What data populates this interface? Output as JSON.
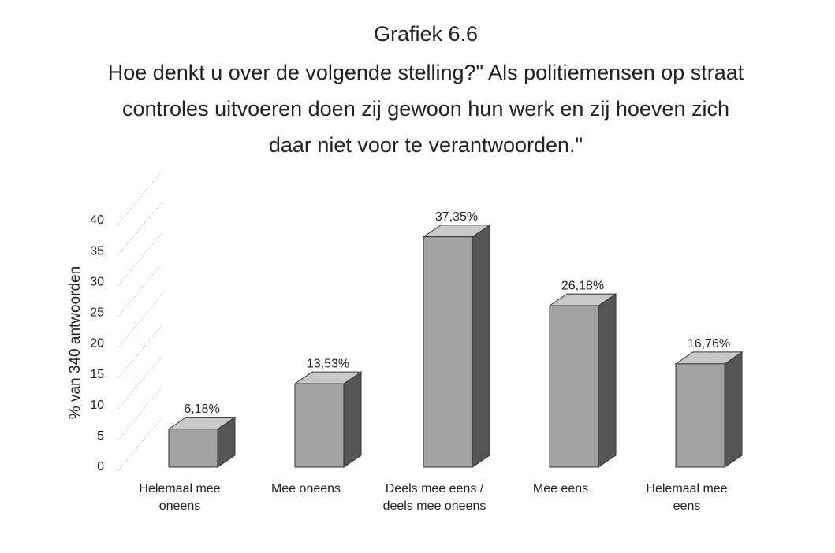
{
  "chart_data": {
    "type": "bar3d",
    "title": "Grafiek 6.6",
    "subtitle": "Hoe denkt u over de volgende stelling?\" Als politiemensen op straat controles uitvoeren doen zij gewoon hun werk en zij hoeven zich daar niet voor te verantwoorden.\"",
    "y_axis_label": "% van 340 antwoorden",
    "categories": [
      "Helemaal mee oneens",
      "Mee oneens",
      "Deels mee eens / deels mee oneens",
      "Mee eens",
      "Helemaal mee eens"
    ],
    "values": [
      6.18,
      13.53,
      37.35,
      26.18,
      16.76
    ],
    "value_labels": [
      "6,18%",
      "13,53%",
      "37,35%",
      "26,18%",
      "16,76%"
    ],
    "color": "#a3a3a3",
    "ylim": [
      0,
      40
    ],
    "yticks": [
      0,
      5,
      10,
      15,
      20,
      25,
      30,
      35,
      40
    ],
    "grid": true
  }
}
